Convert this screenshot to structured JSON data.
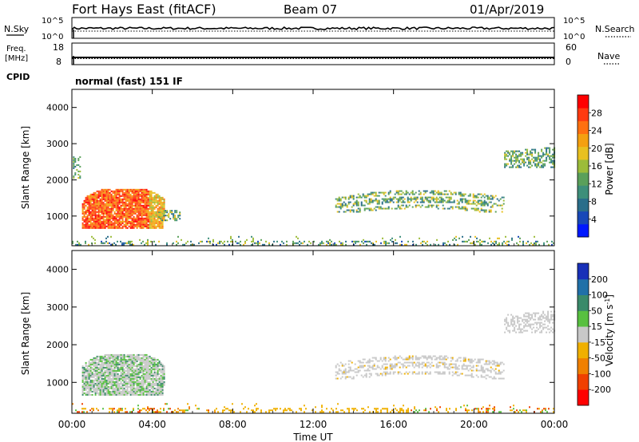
{
  "header": {
    "title": "Fort Hays East (fitACF)",
    "beam": "Beam 07",
    "date": "01/Apr/2019"
  },
  "noise_panel": {
    "left_label": "N.Sky",
    "left_ticks": [
      "10^5",
      "10^0"
    ],
    "right_label": "N.Search",
    "right_ticks": [
      "10^5",
      "10^0"
    ]
  },
  "freq_panel": {
    "left_label_1": "Freq.",
    "left_label_2": "[MHz]",
    "left_ticks": [
      "18",
      "8"
    ],
    "right_label": "Nave",
    "right_ticks": [
      "60",
      "0"
    ],
    "cpid_label": "CPID",
    "cpid_text": "normal (fast) 151 IF"
  },
  "chart_data": [
    {
      "type": "heatmap",
      "title": "",
      "xlabel": "",
      "ylabel": "Slant Range [km]",
      "x_range_hours": [
        0,
        24
      ],
      "ylim": [
        180,
        4500
      ],
      "y_ticks": [
        "1000",
        "2000",
        "3000",
        "4000"
      ],
      "colorbar": {
        "label": "Power [dB]",
        "ticks": [
          "4",
          "8",
          "12",
          "16",
          "20",
          "24",
          "28"
        ],
        "range": [
          0,
          32
        ],
        "colors": [
          "#0018ff",
          "#1848b8",
          "#2a6e8a",
          "#3e8f7a",
          "#5aa05a",
          "#9cbc3a",
          "#e8c020",
          "#f4a010",
          "#ff7010",
          "#ff3a10",
          "#ff0000"
        ]
      },
      "regions": [
        {
          "t0": 0.5,
          "t1": 4.6,
          "r0": 650,
          "r1": 1750,
          "value": 26
        },
        {
          "t0": 0.05,
          "t1": 0.4,
          "r0": 2050,
          "r1": 2650,
          "value": 12
        },
        {
          "t0": 4.3,
          "t1": 5.4,
          "r0": 900,
          "r1": 1300,
          "value": 14
        },
        {
          "t0": 13.1,
          "t1": 21.5,
          "r0": 1100,
          "r1": 1800,
          "value": 10
        },
        {
          "t0": 21.5,
          "t1": 24,
          "r0": 2300,
          "r1": 2900,
          "value": 12
        },
        {
          "t0": 0,
          "t1": 24,
          "r0": 200,
          "r1": 450,
          "value": 10
        }
      ]
    },
    {
      "type": "heatmap",
      "title": "",
      "xlabel": "Time UT",
      "ylabel": "Slant Range [km]",
      "x_range_hours": [
        0,
        24
      ],
      "x_ticks": [
        "00:00",
        "04:00",
        "08:00",
        "12:00",
        "16:00",
        "20:00",
        "00:00"
      ],
      "ylim": [
        180,
        4500
      ],
      "y_ticks": [
        "1000",
        "2000",
        "3000",
        "4000"
      ],
      "colorbar": {
        "label": "Velocity [m s^-1]",
        "ticks": [
          "200",
          "100",
          "50",
          "15",
          "-15",
          "-50",
          "-100",
          "-200"
        ],
        "colors": [
          "#1830b8",
          "#2070a8",
          "#3a8a6a",
          "#58c040",
          "#c8c8c8",
          "#f0b000",
          "#f08000",
          "#f04000",
          "#ff0000"
        ]
      },
      "regions": [
        {
          "t0": 0.5,
          "t1": 4.6,
          "r0": 650,
          "r1": 1750,
          "value": "mixed green/grey"
        },
        {
          "t0": 13.1,
          "t1": 21.5,
          "r0": 1100,
          "r1": 1800,
          "value": "grey"
        },
        {
          "t0": 21.5,
          "t1": 24,
          "r0": 2300,
          "r1": 2900,
          "value": "grey"
        },
        {
          "t0": 0,
          "t1": 24,
          "r0": 200,
          "r1": 450,
          "value": "orange/green"
        }
      ]
    }
  ]
}
